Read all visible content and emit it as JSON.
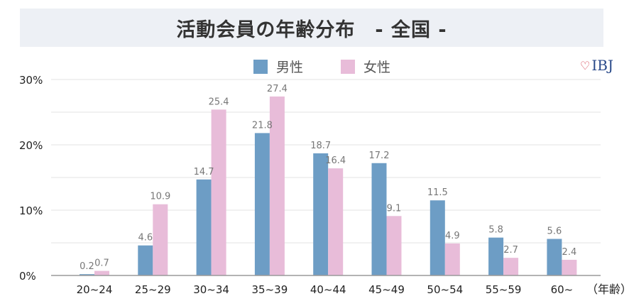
{
  "title": "活動会員の年齢分布　- 全国 -",
  "brand": {
    "text": "IBJ",
    "heart": "♡",
    "icon": "heart-icon"
  },
  "colors": {
    "male": "#6d9dc5",
    "female": "#e8bcd9",
    "grid": "#e3e3e3",
    "axis": "#9a9a9a",
    "title_band": "#edf0f5"
  },
  "chart_data": {
    "type": "bar",
    "title": "活動会員の年齢分布　- 全国 -",
    "categories": [
      "20~24",
      "25~29",
      "30~34",
      "35~39",
      "40~44",
      "45~49",
      "50~54",
      "55~59",
      "60~"
    ],
    "series": [
      {
        "name": "男性",
        "values": [
          0.2,
          4.6,
          14.7,
          21.8,
          18.7,
          17.2,
          11.5,
          5.8,
          5.6
        ]
      },
      {
        "name": "女性",
        "values": [
          0.7,
          10.9,
          25.4,
          27.4,
          16.4,
          9.1,
          4.9,
          2.7,
          2.4
        ]
      }
    ],
    "value_labels": {
      "male": [
        "0.2",
        "4.6",
        "14.7",
        "21.8",
        "18.7",
        "17.2",
        "11.5",
        "5.8",
        "5.6"
      ],
      "female": [
        "0.7",
        "10.9",
        "25.4",
        "27.4",
        "16.4",
        "9.1",
        "4.9",
        "2.7",
        "2.4"
      ]
    },
    "xlabel": "（年齢）",
    "ylabel": "",
    "ylim": [
      0,
      30
    ],
    "yticks": [
      0,
      10,
      20,
      30
    ],
    "ytick_labels": [
      "0%",
      "10%",
      "20%",
      "30%"
    ],
    "grid": true,
    "legend": "top-center"
  }
}
